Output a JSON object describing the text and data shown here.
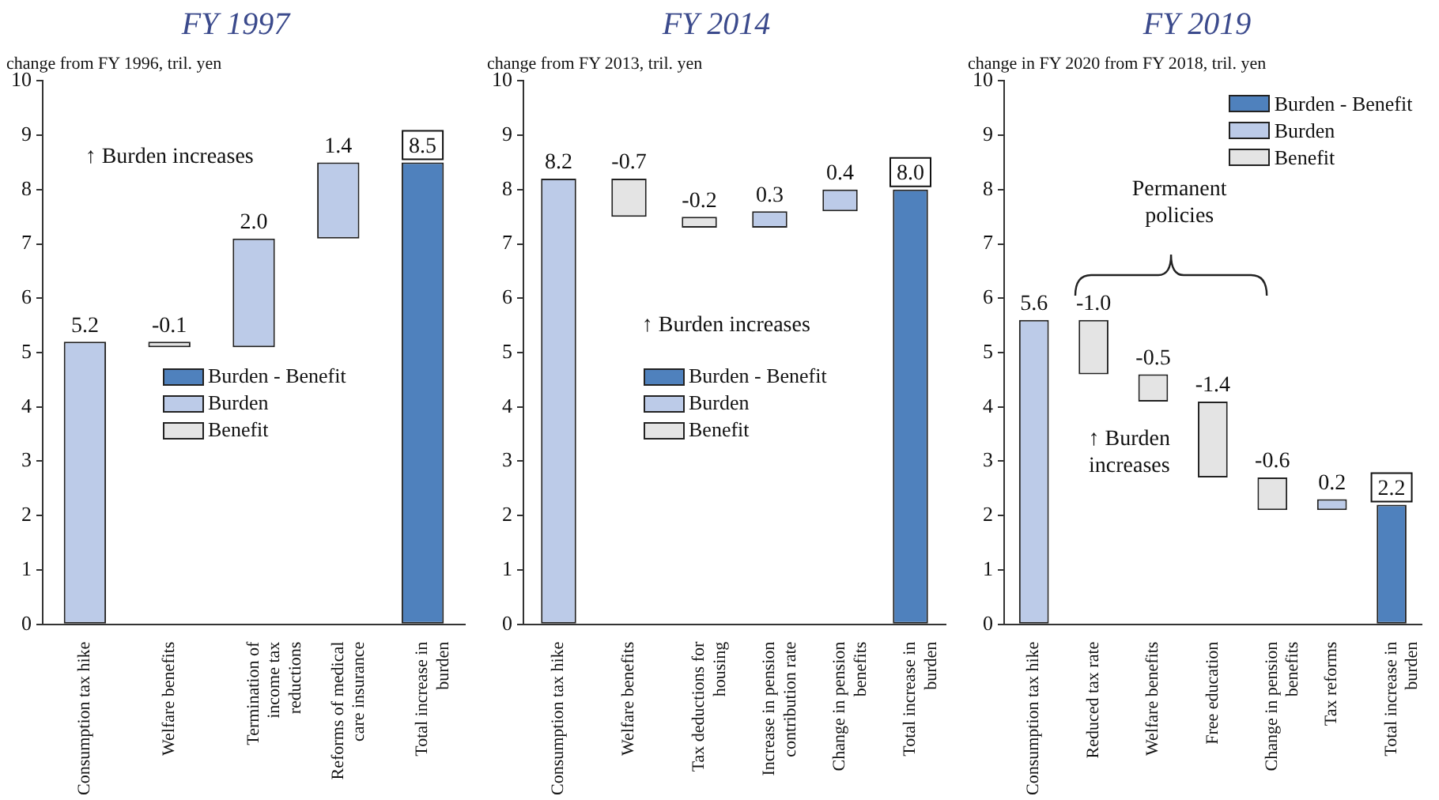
{
  "chart_data": [
    {
      "type": "bar",
      "title": "FY 1997",
      "subtitle": "change from FY 1996, tril. yen",
      "categories": [
        "Consumption tax hike",
        "Welfare benefits",
        "Termination of income tax reductions",
        "Reforms of medical care insurance",
        "Total increase in burden"
      ],
      "ylim": [
        0,
        10
      ],
      "yticks": [
        0,
        1,
        2,
        3,
        4,
        5,
        6,
        7,
        8,
        9,
        10
      ],
      "legend": "center",
      "annotations": [
        "↑ Burden increases"
      ],
      "series": [
        {
          "name": "Burden - Benefit",
          "color": "#4f81bd",
          "values": [
            null,
            null,
            null,
            null,
            8.5
          ],
          "base": [
            null,
            null,
            null,
            null,
            0
          ],
          "value_labels": [
            null,
            null,
            null,
            null,
            "8.5"
          ]
        },
        {
          "name": "Burden",
          "color": "#bccbe8",
          "values": [
            5.2,
            null,
            2.0,
            1.4,
            null
          ],
          "base": [
            0,
            null,
            5.1,
            7.1,
            null
          ],
          "value_labels": [
            "5.2",
            null,
            "2.0",
            "1.4",
            null
          ]
        },
        {
          "name": "Benefit",
          "color": "#e4e4e4",
          "values": [
            null,
            -0.1,
            null,
            null,
            null
          ],
          "base": [
            null,
            5.2,
            null,
            null,
            null
          ],
          "value_labels": [
            null,
            "-0.1",
            null,
            null,
            null
          ]
        }
      ]
    },
    {
      "type": "bar",
      "title": "FY 2014",
      "subtitle": "change from FY 2013, tril. yen",
      "categories": [
        "Consumption tax hike",
        "Welfare benefits",
        "Tax deductions for housing",
        "Increase in pension contribution rate",
        "Change in pension benefits",
        "Total increase in burden"
      ],
      "ylim": [
        0,
        10
      ],
      "yticks": [
        0,
        1,
        2,
        3,
        4,
        5,
        6,
        7,
        8,
        9,
        10
      ],
      "legend": "center",
      "annotations": [
        "↑ Burden increases"
      ],
      "series": [
        {
          "name": "Burden - Benefit",
          "color": "#4f81bd",
          "values": [
            null,
            null,
            null,
            null,
            null,
            8.0
          ],
          "base": [
            null,
            null,
            null,
            null,
            null,
            0
          ],
          "value_labels": [
            null,
            null,
            null,
            null,
            null,
            "8.0"
          ]
        },
        {
          "name": "Burden",
          "color": "#bccbe8",
          "values": [
            8.2,
            null,
            null,
            0.3,
            0.4,
            null
          ],
          "base": [
            0,
            null,
            null,
            7.3,
            7.6,
            null
          ],
          "value_labels": [
            "8.2",
            null,
            null,
            "0.3",
            "0.4",
            null
          ]
        },
        {
          "name": "Benefit",
          "color": "#e4e4e4",
          "values": [
            null,
            -0.7,
            -0.2,
            null,
            null,
            null
          ],
          "base": [
            null,
            8.2,
            7.5,
            null,
            null,
            null
          ],
          "value_labels": [
            null,
            "-0.7",
            "-0.2",
            null,
            null,
            null
          ]
        }
      ]
    },
    {
      "type": "bar",
      "title": "FY 2019",
      "subtitle": "change in FY 2020 from FY 2018, tril. yen",
      "categories": [
        "Consumption tax hike",
        "Reduced tax rate",
        "Welfare benefits",
        "Free education",
        "Change in pension benefits",
        "Tax reforms",
        "Total increase in burden"
      ],
      "ylim": [
        0,
        10
      ],
      "yticks": [
        0,
        1,
        2,
        3,
        4,
        5,
        6,
        7,
        8,
        9,
        10
      ],
      "legend": "top right",
      "annotations": [
        "↑ Burden increases",
        "Permanent policies"
      ],
      "series": [
        {
          "name": "Burden - Benefit",
          "color": "#4f81bd",
          "values": [
            null,
            null,
            null,
            null,
            null,
            null,
            2.2
          ],
          "base": [
            null,
            null,
            null,
            null,
            null,
            null,
            0
          ],
          "value_labels": [
            null,
            null,
            null,
            null,
            null,
            null,
            "2.2"
          ]
        },
        {
          "name": "Burden",
          "color": "#bccbe8",
          "values": [
            5.6,
            null,
            null,
            null,
            null,
            0.2,
            null
          ],
          "base": [
            0,
            null,
            null,
            null,
            null,
            2.1,
            null
          ],
          "value_labels": [
            "5.6",
            null,
            null,
            null,
            null,
            "0.2",
            null
          ]
        },
        {
          "name": "Benefit",
          "color": "#e4e4e4",
          "values": [
            null,
            -1.0,
            -0.5,
            -1.4,
            -0.6,
            null,
            null
          ],
          "base": [
            null,
            5.6,
            4.6,
            4.1,
            2.7,
            null,
            null
          ],
          "value_labels": [
            null,
            "-1.0",
            "-0.5",
            "-1.4",
            "-0.6",
            null,
            null
          ]
        }
      ]
    }
  ]
}
